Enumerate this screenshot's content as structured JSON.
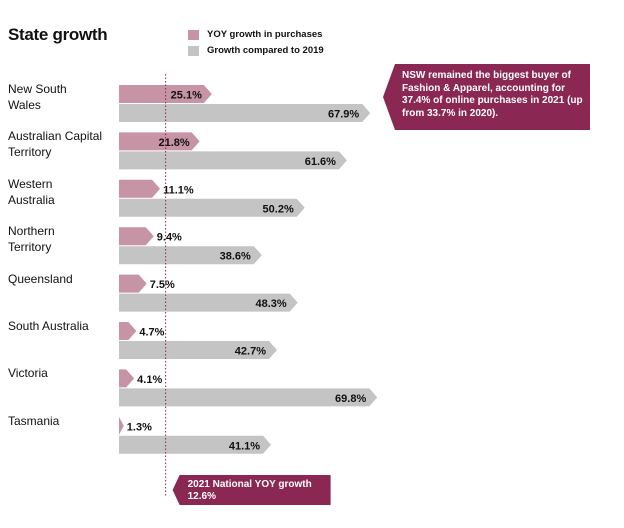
{
  "chart_data": {
    "type": "bar",
    "orientation": "horizontal",
    "title": "State growth",
    "categories": [
      "New South Wales",
      "Australian Capital Territory",
      "Western Australia",
      "Northern Territory",
      "Queensland",
      "South Australia",
      "Victoria",
      "Tasmania"
    ],
    "category_lines": [
      [
        "New South",
        "Wales"
      ],
      [
        "Australian Capital",
        "Territory"
      ],
      [
        "Western",
        "Australia"
      ],
      [
        "Northern",
        "Territory"
      ],
      [
        "Queensland"
      ],
      [
        "South Australia"
      ],
      [
        "Victoria"
      ],
      [
        "Tasmania"
      ]
    ],
    "series": [
      {
        "name": "YOY growth in purchases",
        "color": "#c694a4",
        "values": [
          25.1,
          21.8,
          11.1,
          9.4,
          7.5,
          4.7,
          4.1,
          1.3
        ],
        "labels": [
          "25.1%",
          "21.8%",
          "11.1%",
          "9.4%",
          "7.5%",
          "4.7%",
          "4.1%",
          "1.3%"
        ]
      },
      {
        "name": "Growth compared to 2019",
        "color": "#c4c4c4",
        "values": [
          67.9,
          61.6,
          50.2,
          38.6,
          48.3,
          42.7,
          69.8,
          41.1
        ],
        "labels": [
          "67.9%",
          "61.6%",
          "50.2%",
          "38.6%",
          "48.3%",
          "42.7%",
          "69.8%",
          "41.1%"
        ]
      }
    ],
    "reference_line": {
      "value": 12.6,
      "label": "2021 National YOY growth",
      "value_label": "12.6%"
    },
    "annotation": "NSW remained the biggest buyer of Fashion & Apparel, accounting for 37.4% of online purchases in 2021 (up from 33.7% in 2020).",
    "legend_placement": "top",
    "grid": false,
    "accent_color": "#8a2752"
  }
}
